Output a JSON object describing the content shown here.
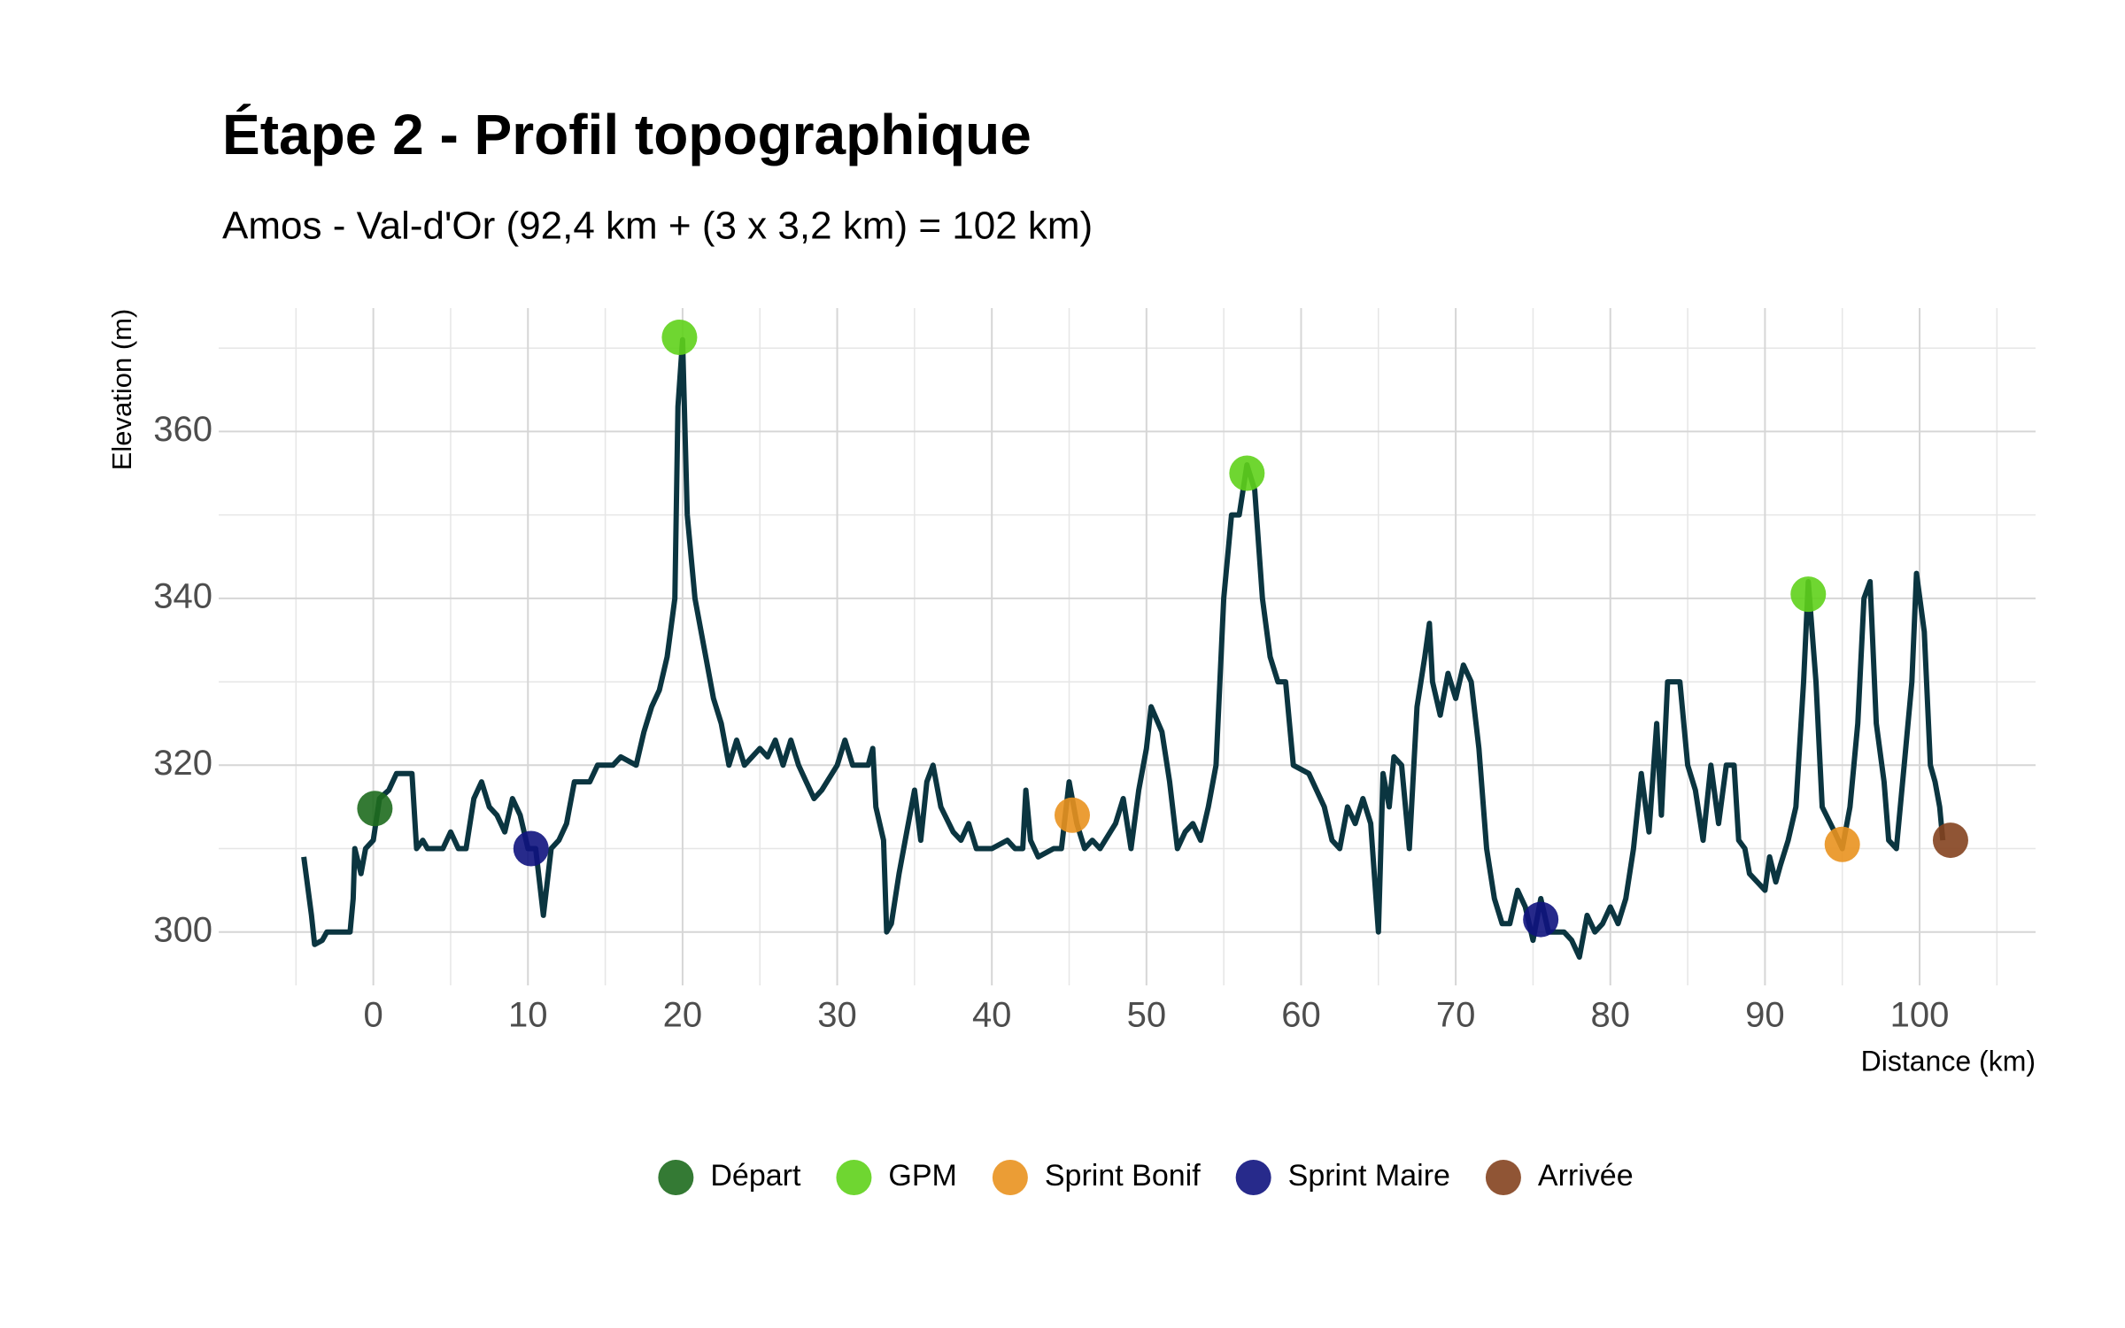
{
  "chart_data": {
    "type": "line",
    "title": "Étape 2 - Profil topographique",
    "subtitle": "Amos - Val-d'Or (92,4 km + (3 x 3,2 km) = 102 km)",
    "x_label": "Distance (km)",
    "y_label": "Elevation (m)",
    "line_color": "#0b3540",
    "x": [
      -4.5,
      -4,
      -3.8,
      -3.3,
      -3,
      -1.5,
      -1.3,
      -1.2,
      -0.8,
      -0.5,
      0,
      0.4,
      1,
      1.5,
      2.5,
      2.8,
      3.2,
      3.5,
      4.5,
      5,
      5.5,
      6,
      6.5,
      7,
      7.5,
      8,
      8.5,
      9,
      9.5,
      10,
      10.5,
      11,
      11.5,
      12,
      12.5,
      13,
      14,
      14.5,
      15.5,
      16,
      17,
      17.5,
      18,
      18.5,
      19,
      19.5,
      19.7,
      20,
      20.3,
      20.8,
      21.5,
      22,
      22.5,
      23,
      23.5,
      24,
      25,
      25.5,
      26,
      26.5,
      27,
      27.5,
      28,
      28.5,
      29,
      30,
      30.5,
      31,
      32,
      32.3,
      32.5,
      33,
      33.2,
      33.5,
      34,
      34.5,
      35,
      35.4,
      35.8,
      36.2,
      36.7,
      37.5,
      38,
      38.5,
      39,
      40,
      41,
      41.5,
      42,
      42.2,
      42.5,
      43,
      44,
      44.5,
      45,
      45.5,
      46,
      46.5,
      47,
      48,
      48.5,
      49,
      49.5,
      50,
      50.3,
      51,
      51.5,
      52,
      52.5,
      53,
      53.5,
      54,
      54.5,
      55,
      55.5,
      56,
      56.5,
      57,
      57.5,
      58,
      58.5,
      59,
      59.5,
      60.5,
      61.5,
      62,
      62.5,
      63,
      63.5,
      64,
      64.5,
      65,
      65.3,
      65.7,
      66,
      66.5,
      67,
      67.5,
      68,
      68.3,
      68.5,
      69,
      69.5,
      70,
      70.5,
      71,
      71.5,
      72,
      72.5,
      73,
      73.5,
      74,
      74.5,
      75,
      75.5,
      76,
      77,
      77.5,
      78,
      78.5,
      79,
      79.5,
      80,
      80.5,
      81,
      81.5,
      82,
      82.5,
      83,
      83.3,
      83.7,
      84.5,
      85,
      85.5,
      86,
      86.5,
      87,
      87.5,
      88,
      88.3,
      88.7,
      89,
      90,
      90.3,
      90.7,
      91,
      91.5,
      92,
      92.5,
      92.8,
      93.3,
      93.7,
      94.5,
      95,
      95.5,
      96,
      96.4,
      96.8,
      97.2,
      97.7,
      98,
      98.5,
      99,
      99.5,
      99.8,
      100.3,
      100.7,
      101,
      101.3,
      101.5
    ],
    "values": [
      309,
      302,
      298.5,
      299,
      300,
      300,
      304,
      310,
      307,
      310,
      311,
      316,
      317,
      319,
      319,
      310,
      311,
      310,
      310,
      312,
      310,
      310,
      316,
      318,
      315,
      314,
      312,
      316,
      314,
      310,
      310,
      302,
      310,
      311,
      313,
      318,
      318,
      320,
      320,
      321,
      320,
      324,
      327,
      329,
      333,
      340,
      363,
      371,
      350,
      340,
      333,
      328,
      325,
      320,
      323,
      320,
      322,
      321,
      323,
      320,
      323,
      320,
      318,
      316,
      317,
      320,
      323,
      320,
      320,
      322,
      315,
      311,
      300,
      301,
      307,
      312,
      317,
      311,
      318,
      320,
      315,
      312,
      311,
      313,
      310,
      310,
      311,
      310,
      310,
      317,
      311,
      309,
      310,
      310,
      318,
      313,
      310,
      311,
      310,
      313,
      316,
      310,
      317,
      322,
      327,
      324,
      318,
      310,
      312,
      313,
      311,
      315,
      320,
      340,
      350,
      350,
      356,
      353,
      340,
      333,
      330,
      330,
      320,
      319,
      315,
      311,
      310,
      315,
      313,
      316,
      313,
      300,
      319,
      315,
      321,
      320,
      310,
      327,
      333,
      337,
      330,
      326,
      331,
      328,
      332,
      330,
      322,
      310,
      304,
      301,
      301,
      305,
      303,
      299,
      304,
      300,
      300,
      299,
      297,
      302,
      300,
      301,
      303,
      301,
      304,
      310,
      319,
      312,
      325,
      314,
      330,
      330,
      320,
      317,
      311,
      320,
      313,
      320,
      320,
      311,
      310,
      307,
      305,
      309,
      306,
      308,
      311,
      315,
      330,
      342,
      330,
      315,
      312,
      310,
      315,
      325,
      340,
      342,
      325,
      318,
      311,
      310,
      320,
      330,
      343,
      336,
      320,
      318,
      315,
      311
    ],
    "markers": [
      {
        "name": "Départ",
        "color": "#1e6b1e",
        "x": [
          0.1
        ],
        "values": [
          314.8
        ]
      },
      {
        "name": "GPM",
        "color": "#5fd11b",
        "x": [
          19.8,
          56.5,
          92.8
        ],
        "values": [
          371.3,
          355,
          340.5
        ]
      },
      {
        "name": "Sprint Bonif",
        "color": "#e9921f",
        "x": [
          45.2,
          95
        ],
        "values": [
          314,
          310.5
        ]
      },
      {
        "name": "Sprint Maire",
        "color": "#10137e",
        "x": [
          10.2,
          75.5
        ],
        "values": [
          310,
          301.5
        ]
      },
      {
        "name": "Arrivée",
        "color": "#84421f",
        "x": [
          102
        ],
        "values": [
          311
        ]
      }
    ],
    "xlim": [
      -10,
      107.5
    ],
    "ylim": [
      293.6,
      374.8
    ],
    "xticks": [
      0,
      10,
      20,
      30,
      40,
      50,
      60,
      70,
      80,
      90,
      100
    ],
    "yticks": [
      300,
      320,
      340,
      360
    ],
    "x_minor_ticks": [
      -5,
      5,
      15,
      25,
      35,
      45,
      55,
      65,
      75,
      85,
      95,
      105
    ],
    "y_minor_ticks": [
      310,
      330,
      350,
      370
    ],
    "grid": true,
    "legend_position": "bottom"
  }
}
